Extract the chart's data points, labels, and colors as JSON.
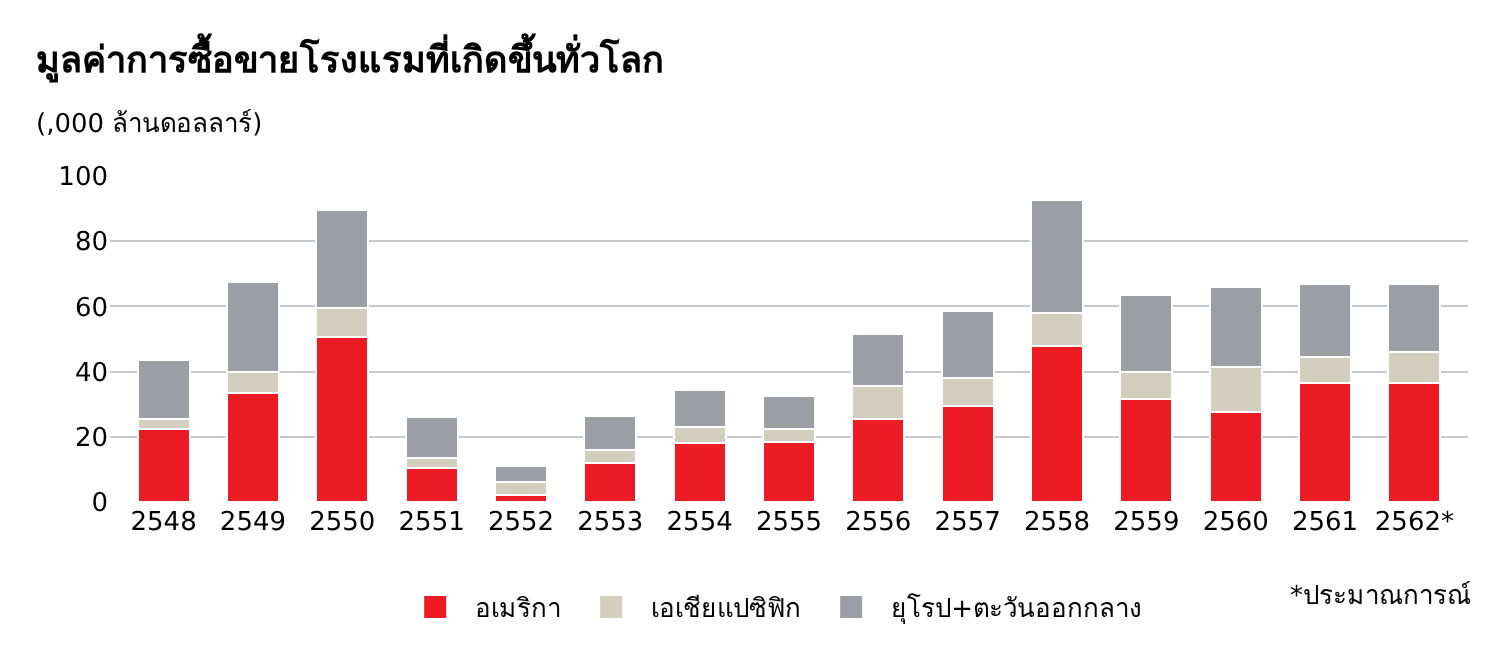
{
  "chart_data": {
    "type": "bar",
    "title": "มูลค่าการซื้อขายโรงแรมที่เกิดขึ้นทั่วโลก",
    "subtitle": "(,000 ล้านดอลลาร์)",
    "categories": [
      "2548",
      "2549",
      "2550",
      "2551",
      "2552",
      "2553",
      "2554",
      "2555",
      "2556",
      "2557",
      "2558",
      "2559",
      "2560",
      "2561",
      "2562*"
    ],
    "stacked": true,
    "series": [
      {
        "name": "อเมริกา",
        "color": "#ed1c24",
        "values": [
          22.5,
          33.5,
          50.5,
          10.5,
          2,
          12,
          18,
          18.5,
          25.5,
          29.5,
          48,
          31.5,
          27.5,
          36.5,
          36.5
        ]
      },
      {
        "name": "เอเชียแปซิฟิก",
        "color": "#d3cfbf",
        "values": [
          3,
          6.5,
          9,
          3,
          4,
          4,
          5,
          4,
          10,
          8.5,
          10,
          8.5,
          14,
          8,
          9.5
        ]
      },
      {
        "name": "ยุโรป+ตะวันออกกลาง",
        "color": "#9d9ea3",
        "values": [
          18,
          27.5,
          30,
          12.5,
          5,
          10.5,
          11.5,
          10,
          16,
          20.5,
          34.5,
          23.5,
          24.5,
          22.5,
          21
        ]
      }
    ],
    "ylim": [
      0,
      100
    ],
    "yticks": [
      0,
      20,
      40,
      60,
      80,
      100
    ],
    "grid": "y",
    "legend": "bottom",
    "annotations": [
      "*ประมาณการณ์"
    ]
  }
}
